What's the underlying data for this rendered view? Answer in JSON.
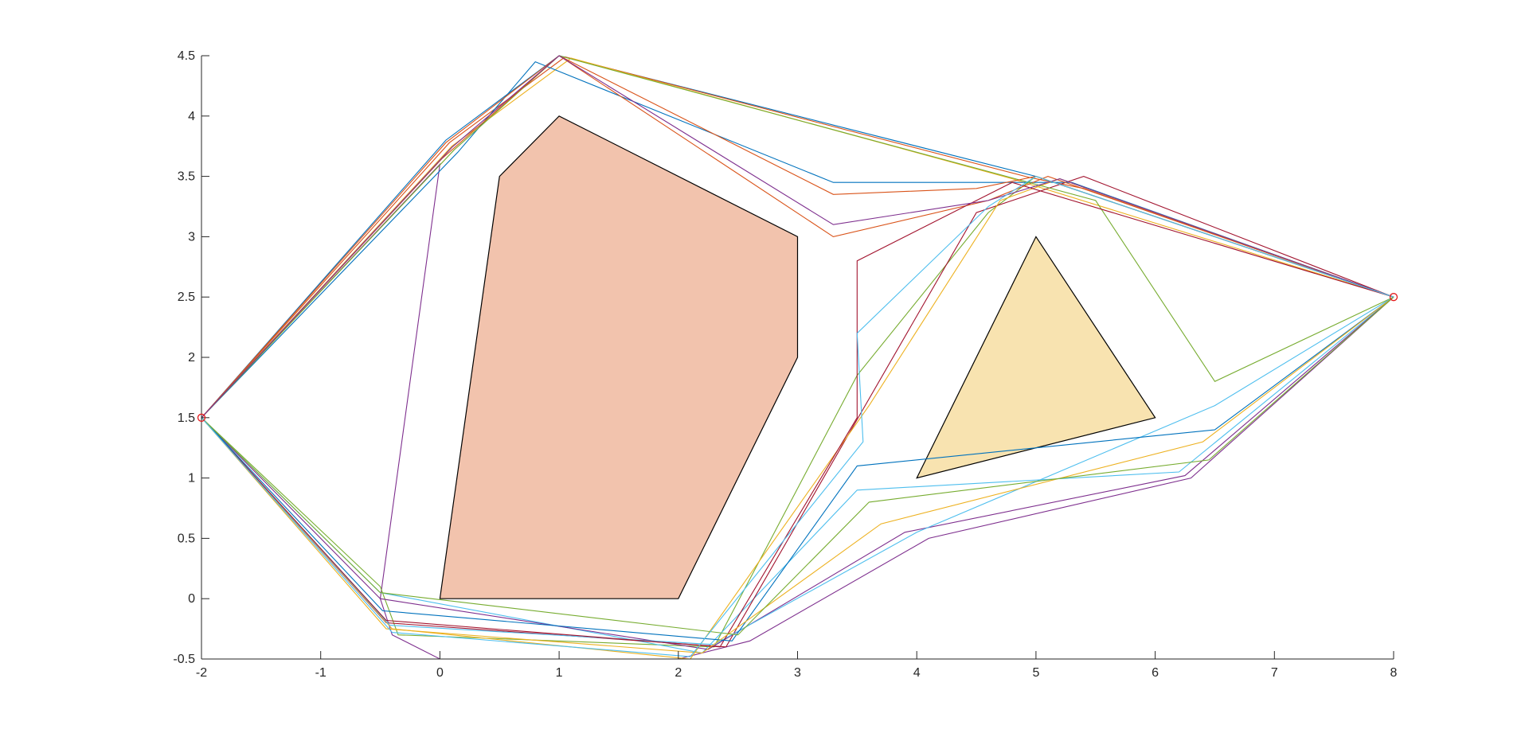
{
  "chart_data": {
    "type": "line",
    "title": "",
    "xlabel": "",
    "ylabel": "",
    "xlim": [
      -2,
      8
    ],
    "ylim": [
      -0.5,
      4.5
    ],
    "xticks": [
      -2,
      -1,
      0,
      1,
      2,
      3,
      4,
      5,
      6,
      7,
      8
    ],
    "yticks": [
      -0.5,
      0,
      0.5,
      1,
      1.5,
      2,
      2.5,
      3,
      3.5,
      4,
      4.5
    ],
    "grid": false,
    "legend": "none",
    "obstacles": [
      {
        "fill": "#F2C3AD",
        "vertices": [
          [
            0,
            0
          ],
          [
            0.5,
            3.5
          ],
          [
            1,
            4
          ],
          [
            3,
            3
          ],
          [
            3,
            2
          ],
          [
            2,
            0
          ]
        ]
      },
      {
        "fill": "#F8E3B0",
        "vertices": [
          [
            4,
            1
          ],
          [
            5,
            3
          ],
          [
            6,
            1.5
          ]
        ]
      }
    ],
    "clearance_radius": 0.5,
    "start": [
      -2,
      1.5
    ],
    "goal": [
      8,
      2.5
    ],
    "series_colors": [
      "#0072BD",
      "#D95319",
      "#EDB120",
      "#7E2F8E",
      "#77AC30",
      "#4DBEEE",
      "#A2142F"
    ],
    "series": [
      {
        "name": "",
        "points": [
          [
            -2,
            1.5
          ],
          [
            0.05,
            3.8
          ],
          [
            1,
            4.5
          ],
          [
            5,
            3.5
          ],
          [
            8,
            2.5
          ]
        ]
      },
      {
        "name": "",
        "points": [
          [
            -2,
            1.5
          ],
          [
            0.08,
            3.78
          ],
          [
            1.05,
            4.49
          ],
          [
            4.95,
            3.49
          ],
          [
            5.4,
            3.4
          ],
          [
            8,
            2.5
          ]
        ]
      },
      {
        "name": "",
        "points": [
          [
            -2,
            1.5
          ],
          [
            0.1,
            3.75
          ],
          [
            1.1,
            4.48
          ],
          [
            4.8,
            3.48
          ],
          [
            8,
            2.5
          ]
        ]
      },
      {
        "name": "",
        "points": [
          [
            -2,
            1.5
          ],
          [
            0,
            3.6
          ],
          [
            -0.5,
            0
          ],
          [
            -0.4,
            -0.3
          ],
          [
            0,
            -0.5
          ],
          [
            2,
            -0.5
          ],
          [
            2.6,
            -0.35
          ],
          [
            4.1,
            0.5
          ],
          [
            6.3,
            1.0
          ],
          [
            8,
            2.5
          ]
        ]
      },
      {
        "name": "",
        "points": [
          [
            -2,
            1.5
          ],
          [
            -0.5,
            0.1
          ],
          [
            -0.35,
            -0.3
          ],
          [
            2.3,
            -0.4
          ],
          [
            3.5,
            1.85
          ],
          [
            4.6,
            3.2
          ],
          [
            5,
            3.5
          ],
          [
            8,
            2.5
          ]
        ]
      },
      {
        "name": "",
        "points": [
          [
            -2,
            1.5
          ],
          [
            -0.5,
            0.05
          ],
          [
            2.2,
            -0.45
          ],
          [
            3.5,
            0.9
          ],
          [
            6.2,
            1.05
          ],
          [
            8,
            2.5
          ]
        ]
      },
      {
        "name": "",
        "points": [
          [
            -2,
            1.5
          ],
          [
            -0.45,
            -0.2
          ],
          [
            2.4,
            -0.4
          ],
          [
            4.5,
            3.2
          ],
          [
            5.4,
            3.5
          ],
          [
            8,
            2.5
          ]
        ]
      },
      {
        "name": "",
        "points": [
          [
            -2,
            1.5
          ],
          [
            0.15,
            3.7
          ],
          [
            0.8,
            4.45
          ],
          [
            3.3,
            3.45
          ],
          [
            4.8,
            3.45
          ],
          [
            5.3,
            3.45
          ],
          [
            8,
            2.5
          ]
        ]
      },
      {
        "name": "",
        "points": [
          [
            -2,
            1.5
          ],
          [
            0.05,
            3.78
          ],
          [
            1.0,
            4.5
          ],
          [
            3.3,
            3.0
          ],
          [
            4.6,
            3.3
          ],
          [
            5.1,
            3.5
          ],
          [
            8,
            2.5
          ]
        ]
      },
      {
        "name": "",
        "points": [
          [
            -2,
            1.5
          ],
          [
            -0.4,
            -0.25
          ],
          [
            2.1,
            -0.5
          ],
          [
            3.6,
            1.6
          ],
          [
            4.7,
            3.3
          ],
          [
            5.2,
            3.48
          ],
          [
            8,
            2.5
          ]
        ]
      },
      {
        "name": "",
        "points": [
          [
            -2,
            1.5
          ],
          [
            -0.5,
            0.0
          ],
          [
            2.25,
            -0.42
          ],
          [
            3.9,
            0.55
          ],
          [
            6.25,
            1.02
          ],
          [
            8,
            2.5
          ]
        ]
      },
      {
        "name": "",
        "points": [
          [
            -2,
            1.5
          ],
          [
            0.12,
            3.72
          ],
          [
            1.0,
            4.5
          ],
          [
            5.5,
            3.3
          ],
          [
            6.5,
            1.8
          ],
          [
            8,
            2.5
          ]
        ]
      },
      {
        "name": "",
        "points": [
          [
            -2,
            1.5
          ],
          [
            -0.42,
            -0.22
          ],
          [
            2.3,
            -0.38
          ],
          [
            4.0,
            0.55
          ],
          [
            6.5,
            1.6
          ],
          [
            8,
            2.5
          ]
        ]
      },
      {
        "name": "",
        "points": [
          [
            -2,
            1.5
          ],
          [
            -0.45,
            -0.18
          ],
          [
            2.35,
            -0.4
          ],
          [
            3.5,
            1.5
          ],
          [
            3.5,
            2.8
          ],
          [
            4.8,
            3.45
          ],
          [
            8,
            2.5
          ]
        ]
      },
      {
        "name": "",
        "points": [
          [
            -2,
            1.5
          ],
          [
            -0.48,
            -0.1
          ],
          [
            2.45,
            -0.35
          ],
          [
            3.5,
            1.1
          ],
          [
            6.5,
            1.4
          ],
          [
            8,
            2.5
          ]
        ]
      },
      {
        "name": "",
        "points": [
          [
            -2,
            1.5
          ],
          [
            0.02,
            3.65
          ],
          [
            1,
            4.5
          ],
          [
            3.3,
            3.35
          ],
          [
            4.5,
            3.4
          ],
          [
            5.0,
            3.5
          ],
          [
            8,
            2.5
          ]
        ]
      },
      {
        "name": "",
        "points": [
          [
            -2,
            1.5
          ],
          [
            -0.45,
            -0.25
          ],
          [
            2.2,
            -0.45
          ],
          [
            3.7,
            0.62
          ],
          [
            6.4,
            1.3
          ],
          [
            8,
            2.5
          ]
        ]
      },
      {
        "name": "",
        "points": [
          [
            -2,
            1.5
          ],
          [
            0.1,
            3.74
          ],
          [
            1.0,
            4.5
          ],
          [
            3.3,
            3.1
          ],
          [
            4.6,
            3.3
          ],
          [
            5.2,
            3.48
          ],
          [
            8,
            2.5
          ]
        ]
      },
      {
        "name": "",
        "points": [
          [
            -2,
            1.5
          ],
          [
            -0.5,
            0.05
          ],
          [
            2.5,
            -0.3
          ],
          [
            3.6,
            0.8
          ],
          [
            6.45,
            1.15
          ],
          [
            8,
            2.5
          ]
        ]
      },
      {
        "name": "",
        "points": [
          [
            -2,
            1.5
          ],
          [
            -0.4,
            -0.28
          ],
          [
            2.1,
            -0.48
          ],
          [
            3.55,
            1.3
          ],
          [
            3.5,
            2.2
          ],
          [
            4.6,
            3.25
          ],
          [
            5.0,
            3.5
          ],
          [
            8,
            2.5
          ]
        ]
      }
    ]
  }
}
